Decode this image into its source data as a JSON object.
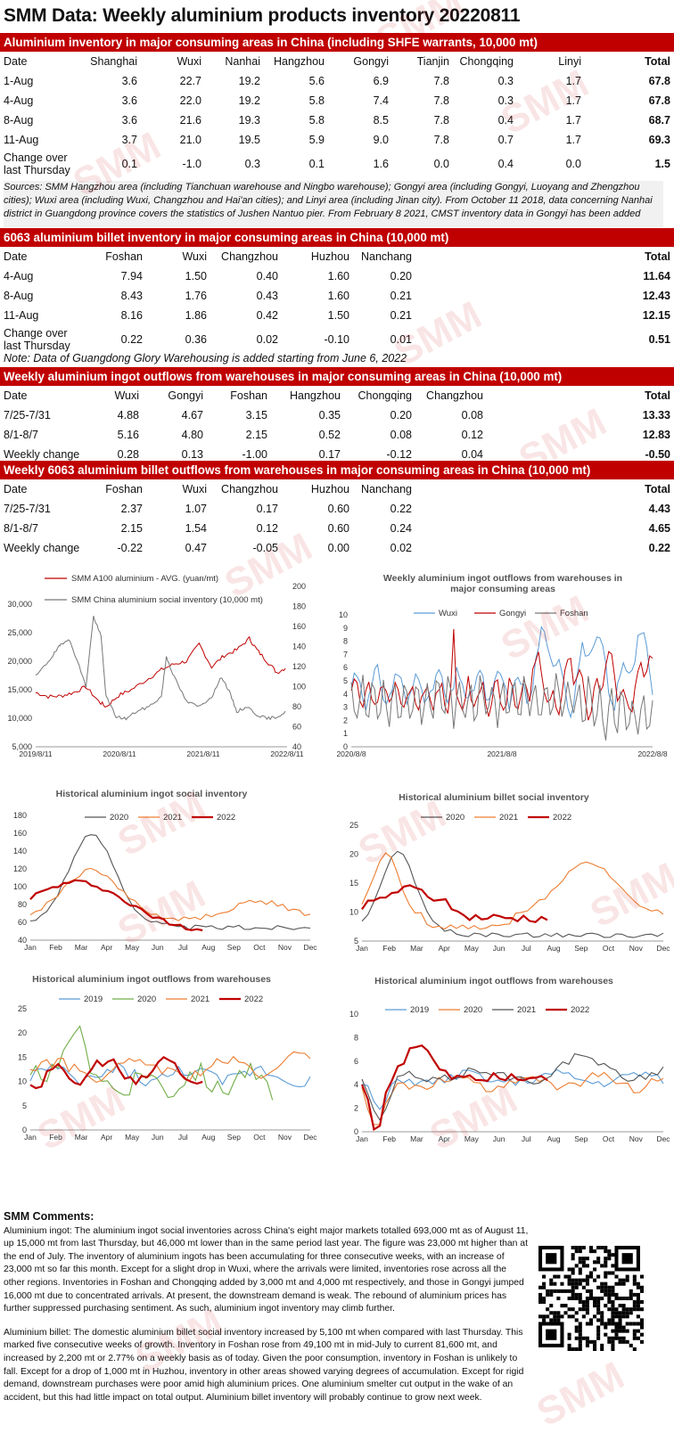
{
  "title": "SMM Data: Weekly aluminium products inventory 20220811",
  "table1": {
    "header": "Aluminium inventory in major consuming areas in China (including SHFE warrants, 10,000 mt)",
    "columns": [
      "Date",
      "Shanghai",
      "Wuxi",
      "Nanhai",
      "Hangzhou",
      "Gongyi",
      "Tianjin",
      "Chongqing",
      "Linyi",
      "Total"
    ],
    "rows": [
      [
        "1-Aug",
        "3.6",
        "22.7",
        "19.2",
        "5.6",
        "6.9",
        "7.8",
        "0.3",
        "1.7",
        "67.8"
      ],
      [
        "4-Aug",
        "3.6",
        "22.0",
        "19.2",
        "5.8",
        "7.4",
        "7.8",
        "0.3",
        "1.7",
        "67.8"
      ],
      [
        "8-Aug",
        "3.6",
        "21.6",
        "19.3",
        "5.8",
        "8.5",
        "7.8",
        "0.4",
        "1.7",
        "68.7"
      ],
      [
        "11-Aug",
        "3.7",
        "21.0",
        "19.5",
        "5.9",
        "9.0",
        "7.8",
        "0.7",
        "1.7",
        "69.3"
      ]
    ],
    "change_label_1": "Change over",
    "change_label_2": "last Thursday",
    "change": [
      "0.1",
      "-1.0",
      "0.3",
      "0.1",
      "1.6",
      "0.0",
      "0.4",
      "0.0",
      "1.5"
    ],
    "source": "Sources: SMM Hangzhou area (including Tianchuan warehouse and Ningbo warehouse); Gongyi area (including Gongyi, Luoyang and Zhengzhou cities); Wuxi area (including Wuxi, Changzhou and Hai'an cities); and  Linyi area (including Jinan city). From October 11 2018, data concerning Nanhai district in Guangdong province covers the statistics of Jushen Nantuo pier. From February 8 2021, CMST inventory data in Gongyi has been added"
  },
  "table2": {
    "header": "6063 aluminium billet inventory in major consuming areas in China (10,000 mt)",
    "columns": [
      "Date",
      "Foshan",
      "Wuxi",
      "Changzhou",
      "Huzhou",
      "Nanchang",
      "Total"
    ],
    "rows": [
      [
        "4-Aug",
        "7.94",
        "1.50",
        "0.40",
        "1.60",
        "0.20",
        "11.64"
      ],
      [
        "8-Aug",
        "8.43",
        "1.76",
        "0.43",
        "1.60",
        "0.21",
        "12.43"
      ],
      [
        "11-Aug",
        "8.16",
        "1.86",
        "0.42",
        "1.50",
        "0.21",
        "12.15"
      ]
    ],
    "change_label_1": "Change over",
    "change_label_2": "last Thursday",
    "change": [
      "0.22",
      "0.36",
      "0.02",
      "-0.10",
      "0.01",
      "0.51"
    ],
    "note": "Note: Data of Guangdong Glory Warehousing is added starting from June 6, 2022"
  },
  "table3": {
    "header": "Weekly aluminium ingot outflows from warehouses in major consuming areas in China (10,000 mt)",
    "columns": [
      "Date",
      "Wuxi",
      "Gongyi",
      "Foshan",
      "Hangzhou",
      "Chongqing",
      "Changzhou",
      "Total"
    ],
    "rows": [
      [
        "7/25-7/31",
        "4.88",
        "4.67",
        "3.15",
        "0.35",
        "0.20",
        "0.08",
        "13.33"
      ],
      [
        "8/1-8/7",
        "5.16",
        "4.80",
        "2.15",
        "0.52",
        "0.08",
        "0.12",
        "12.83"
      ],
      [
        "Weekly change",
        "0.28",
        "0.13",
        "-1.00",
        "0.17",
        "-0.12",
        "0.04",
        "-0.50"
      ]
    ]
  },
  "table4": {
    "header": "Weekly 6063 aluminium billet outflows from warehouses in major consuming areas in China (10,000 mt)",
    "columns": [
      "Date",
      "Foshan",
      "Wuxi",
      "Changzhou",
      "Huzhou",
      "Nanchang",
      "Total"
    ],
    "rows": [
      [
        "7/25-7/31",
        "2.37",
        "1.07",
        "0.17",
        "0.60",
        "0.22",
        "4.43"
      ],
      [
        "8/1-8/7",
        "2.15",
        "1.54",
        "0.12",
        "0.60",
        "0.24",
        "4.65"
      ],
      [
        "Weekly change",
        "-0.22",
        "0.47",
        "-0.05",
        "0.00",
        "0.02",
        "0.22"
      ]
    ]
  },
  "chart_data": [
    {
      "type": "line",
      "title": "",
      "series": [
        {
          "name": "SMM A100 aluminium - AVG. (yuan/mt)",
          "axis": "left",
          "color": "#c00000",
          "points": [
            [
              0,
              14500
            ],
            [
              0.05,
              13800
            ],
            [
              0.1,
              13900
            ],
            [
              0.15,
              14500
            ],
            [
              0.2,
              15500
            ],
            [
              0.25,
              13000
            ],
            [
              0.28,
              12000
            ],
            [
              0.33,
              14000
            ],
            [
              0.38,
              15000
            ],
            [
              0.45,
              17000
            ],
            [
              0.5,
              18500
            ],
            [
              0.55,
              19500
            ],
            [
              0.6,
              20000
            ],
            [
              0.65,
              23000
            ],
            [
              0.7,
              19000
            ],
            [
              0.75,
              21000
            ],
            [
              0.8,
              22000
            ],
            [
              0.85,
              24000
            ],
            [
              0.88,
              22000
            ],
            [
              0.92,
              20000
            ],
            [
              0.96,
              18000
            ],
            [
              1.0,
              19000
            ]
          ]
        },
        {
          "name": "SMM China aluminium social inventory (10,000 mt)",
          "axis": "right",
          "color": "#777777",
          "points": [
            [
              0,
              110
            ],
            [
              0.05,
              125
            ],
            [
              0.08,
              135
            ],
            [
              0.1,
              142
            ],
            [
              0.13,
              148
            ],
            [
              0.16,
              130
            ],
            [
              0.2,
              100
            ],
            [
              0.23,
              170
            ],
            [
              0.26,
              150
            ],
            [
              0.28,
              90
            ],
            [
              0.32,
              70
            ],
            [
              0.36,
              68
            ],
            [
              0.4,
              75
            ],
            [
              0.45,
              80
            ],
            [
              0.5,
              90
            ],
            [
              0.52,
              130
            ],
            [
              0.55,
              110
            ],
            [
              0.6,
              85
            ],
            [
              0.65,
              80
            ],
            [
              0.7,
              90
            ],
            [
              0.74,
              110
            ],
            [
              0.77,
              95
            ],
            [
              0.8,
              75
            ],
            [
              0.84,
              80
            ],
            [
              0.88,
              72
            ],
            [
              0.92,
              68
            ],
            [
              0.96,
              70
            ],
            [
              1.0,
              75
            ]
          ]
        }
      ],
      "y_left": {
        "ticks": [
          "30,000",
          "25,000",
          "20,000",
          "15,000",
          "10,000",
          "5,000"
        ],
        "range": [
          5000,
          30000
        ]
      },
      "y_right": {
        "ticks": [
          "200",
          "180",
          "160",
          "140",
          "120",
          "100",
          "80",
          "60",
          "40"
        ],
        "range": [
          40,
          200
        ]
      },
      "x_ticks": [
        "2019/8/11",
        "2020/8/11",
        "2021/8/11",
        "2022/8/11"
      ]
    },
    {
      "type": "line",
      "title": "Weekly aluminium ingot outflows from warehouses in major consuming areas",
      "series": [
        {
          "name": "Wuxi",
          "color": "#5b9bd5"
        },
        {
          "name": "Gongyi",
          "color": "#c00000"
        },
        {
          "name": "Foshan",
          "color": "#777777"
        }
      ],
      "y_ticks": [
        "10",
        "9",
        "8",
        "7",
        "6",
        "5",
        "4",
        "3",
        "2",
        "1",
        "0"
      ],
      "y_range": [
        0,
        10
      ],
      "x_ticks": [
        "2020/8/8",
        "2021/8/8",
        "2022/8/8"
      ]
    },
    {
      "type": "line",
      "title": "Historical aluminium ingot social inventory",
      "series": [
        {
          "name": "2020",
          "color": "#555555"
        },
        {
          "name": "2021",
          "color": "#ed7d31"
        },
        {
          "name": "2022",
          "color": "#c00000"
        }
      ],
      "y_ticks": [
        "180",
        "160",
        "140",
        "120",
        "100",
        "80",
        "60",
        "40"
      ],
      "y_range": [
        40,
        180
      ],
      "x_ticks": [
        "Jan",
        "Feb",
        "Mar",
        "Apr",
        "May",
        "Jun",
        "Jul",
        "Aug",
        "Sep",
        "Oct",
        "Nov",
        "Dec"
      ]
    },
    {
      "type": "line",
      "title": "Historical aluminium billet social inventory",
      "series": [
        {
          "name": "2020",
          "color": "#555555"
        },
        {
          "name": "2021",
          "color": "#ed7d31"
        },
        {
          "name": "2022",
          "color": "#c00000"
        }
      ],
      "y_ticks": [
        "25",
        "20",
        "15",
        "10",
        "5"
      ],
      "y_range": [
        5,
        25
      ],
      "x_ticks": [
        "Jan",
        "Feb",
        "Mar",
        "Apr",
        "May",
        "Jun",
        "Jul",
        "Aug",
        "Sep",
        "Oct",
        "Nov",
        "Dec"
      ]
    },
    {
      "type": "line",
      "title": "Historical aluminium ingot outflows from warehouses",
      "series": [
        {
          "name": "2019",
          "color": "#5b9bd5"
        },
        {
          "name": "2020",
          "color": "#70ad47"
        },
        {
          "name": "2021",
          "color": "#ed7d31"
        },
        {
          "name": "2022",
          "color": "#c00000"
        }
      ],
      "y_ticks": [
        "25",
        "20",
        "15",
        "10",
        "5",
        "0"
      ],
      "y_range": [
        0,
        25
      ],
      "x_ticks": [
        "Jan",
        "Feb",
        "Mar",
        "Apr",
        "May",
        "Jun",
        "Jul",
        "Aug",
        "Sep",
        "Oct",
        "Nov",
        "Dec"
      ]
    },
    {
      "type": "line",
      "title": "Historical aluminium ingot outflows from warehouses",
      "series": [
        {
          "name": "2019",
          "color": "#5b9bd5"
        },
        {
          "name": "2020",
          "color": "#ed7d31"
        },
        {
          "name": "2021",
          "color": "#555555"
        },
        {
          "name": "2022",
          "color": "#c00000"
        }
      ],
      "y_ticks": [
        "10",
        "8",
        "6",
        "4",
        "2",
        "0"
      ],
      "y_range": [
        0,
        10
      ],
      "x_ticks": [
        "Jan",
        "Feb",
        "Mar",
        "Apr",
        "May",
        "Jun",
        "Jul",
        "Aug",
        "Sep",
        "Oct",
        "Nov",
        "Dec"
      ]
    }
  ],
  "comments": {
    "heading": "SMM Comments:",
    "p1": "Aluminium ingot: The aluminium ingot social inventories across China's eight major markets totalled 693,000 mt as of August 11, up 15,000 mt from last Thursday, but 46,000 mt lower than in the same period last year. The figure was 23,000 mt higher than at the end of July. The inventory of aluminium ingots has been accumulating for three consecutive weeks, with an increase of 23,000 mt so far this month. Except for a slight drop in Wuxi, where the arrivals were limited, inventories rose across all the other regions. Inventories in Foshan and Chongqing added by 3,000 mt and 4,000 mt respectively, and those in Gongyi jumped 16,000 mt due to concentrated arrivals. At present, the downstream demand is weak. The rebound of aluminium prices has further suppressed purchasing sentiment. As such, aluminium ingot inventory may climb further.",
    "p2": "Aluminium billet: The domestic aluminium billet social inventory increased by 5,100 mt when compared with last Thursday. This marked five consecutive weeks of growth.  Inventory in Foshan rose from 49,100 mt in mid-July to current 81,600 mt, and increased by 2,200 mt or 2.77% on a weekly basis as of today. Given the poor consumption, inventory in Foshan is unlikely to fall. Except for a drop of 1,000 mt in Huzhou, inventory in other areas showed varying degrees of accumulation. Except for rigid demand, downstream purchases were poor amid high aluminium prices. One aluminium smelter cut output in the wake of an accident, but this had little impact on total output. Aluminium billet inventory will probably continue to grow next week."
  },
  "watermark": "SMM"
}
